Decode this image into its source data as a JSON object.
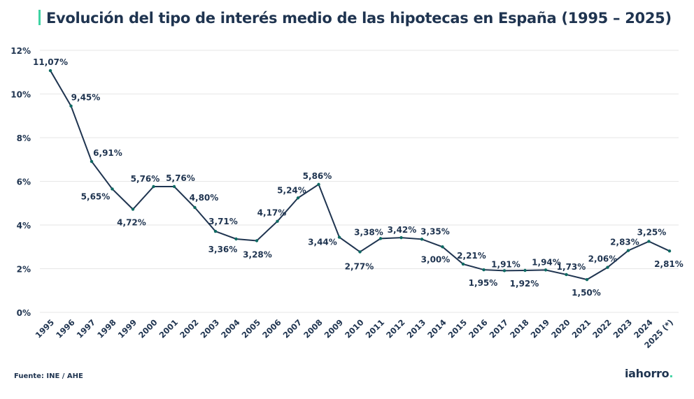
{
  "chart_data": {
    "type": "line",
    "title": "Evolución del tipo de interés medio de las hipotecas en España (1995 – 2025)",
    "xlabel": "",
    "ylabel": "",
    "ylim": [
      0,
      12
    ],
    "yticks": [
      "0%",
      "2%",
      "4%",
      "6%",
      "8%",
      "10%",
      "12%"
    ],
    "grid": true,
    "categories": [
      "1995",
      "1996",
      "1997",
      "1998",
      "1999",
      "2000",
      "2001",
      "2002",
      "2003",
      "2004",
      "2005",
      "2006",
      "2007",
      "2008",
      "2009",
      "2010",
      "2011",
      "2012",
      "2013",
      "2014",
      "2015",
      "2016",
      "2017",
      "2018",
      "2019",
      "2020",
      "2021",
      "2022",
      "2023",
      "2024",
      "2025 (*)"
    ],
    "series": [
      {
        "name": "Tipo de interés medio",
        "values": [
          11.07,
          9.45,
          6.91,
          5.65,
          4.72,
          5.76,
          5.76,
          4.8,
          3.71,
          3.36,
          3.28,
          4.17,
          5.24,
          5.86,
          3.44,
          2.77,
          3.38,
          3.42,
          3.35,
          3.0,
          2.21,
          1.95,
          1.91,
          1.92,
          1.94,
          1.73,
          1.5,
          2.06,
          2.83,
          3.25,
          2.81
        ],
        "labels": [
          "11,07%",
          "9,45%",
          "6,91%",
          "5,65%",
          "4,72%",
          "5,76%",
          "5,76%",
          "4,80%",
          "3,71%",
          "3,36%",
          "3,28%",
          "4,17%",
          "5,24%",
          "5,86%",
          "3,44%",
          "2,77%",
          "3,38%",
          "3,42%",
          "3,35%",
          "3,00%",
          "2,21%",
          "1,95%",
          "1,91%",
          "1,92%",
          "1,94%",
          "1,73%",
          "1,50%",
          "2,06%",
          "2,83%",
          "3,25%",
          "2,81%"
        ]
      }
    ],
    "colors": {
      "line": "#1f3450",
      "marker": "#0f6b63",
      "grid": "#e6e6e6",
      "accent": "#3ed3a3"
    }
  },
  "footer": {
    "source": "Fuente: INE / AHE",
    "logo": "iahorro",
    "logo_dot": "."
  }
}
